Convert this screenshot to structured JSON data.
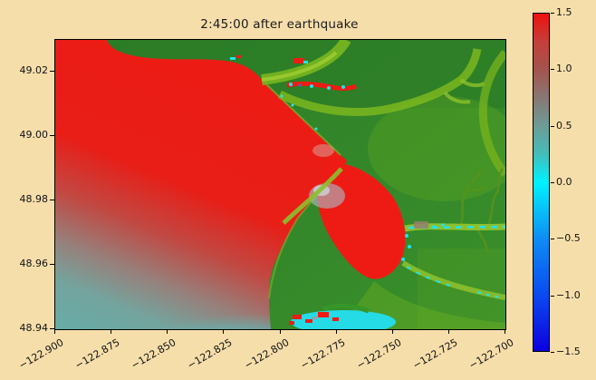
{
  "figure": {
    "background_color": "#f6deab",
    "axes_border_color": "#000000"
  },
  "chart_data": {
    "type": "heatmap",
    "title": "2:45:00 after earthquake",
    "xlabel": "",
    "ylabel": "",
    "grid": false,
    "x_axis": {
      "range": [
        -122.9,
        -122.7
      ],
      "tick_values": [
        -122.9,
        -122.875,
        -122.85,
        -122.825,
        -122.8,
        -122.775,
        -122.75,
        -122.725,
        -122.7
      ],
      "tick_labels": [
        "−122.900",
        "−122.875",
        "−122.850",
        "−122.825",
        "−122.800",
        "−122.775",
        "−122.750",
        "−122.725",
        "−122.700"
      ],
      "tick_rotation_deg": 30
    },
    "y_axis": {
      "range": [
        48.94,
        49.03
      ],
      "tick_values": [
        49.02,
        49.0,
        48.98,
        48.96,
        48.94
      ],
      "tick_labels": [
        "49.02",
        "49.00",
        "48.98",
        "48.96",
        "48.94"
      ]
    },
    "colorbar": {
      "position": "right",
      "range": [
        -1.5,
        1.5
      ],
      "tick_values": [
        1.5,
        1.0,
        0.5,
        0.0,
        -0.5,
        -1.0,
        -1.5
      ],
      "tick_labels": [
        "1.5",
        "1.0",
        "0.5",
        "0.0",
        "−0.5",
        "−1.0",
        "−1.5"
      ],
      "gradient_stops": [
        {
          "value": 1.5,
          "color": "#ee100e"
        },
        {
          "value": 1.25,
          "color": "#c53f39"
        },
        {
          "value": 1.0,
          "color": "#a3544f"
        },
        {
          "value": 0.5,
          "color": "#6d9c97"
        },
        {
          "value": 0.25,
          "color": "#44bdba"
        },
        {
          "value": 0.0,
          "color": "#00f2ff"
        },
        {
          "value": -0.5,
          "color": "#0e8df4"
        },
        {
          "value": -1.0,
          "color": "#0b4aef"
        },
        {
          "value": -1.5,
          "color": "#0c00e0"
        }
      ]
    },
    "regions": [
      {
        "name": "main-bay-surface",
        "description": "large open bay, upper-left two-thirds of map",
        "approx_value": 1.5,
        "color": "#e81e17"
      },
      {
        "name": "offshore-southwest-surface",
        "description": "water toward lower-left corner",
        "approx_value_range": [
          0.0,
          0.7
        ],
        "color": "#66aca7"
      },
      {
        "name": "enclosed-harbor-surface",
        "description": "round harbor behind spit, center-right",
        "approx_value": 1.5,
        "color": "#ee1b14"
      },
      {
        "name": "lagoon-bottom-center",
        "description": "small lagoon on bottom edge with speckled extremes",
        "approx_value_range": [
          -0.2,
          1.5
        ],
        "color": "#25dbe6"
      },
      {
        "name": "land",
        "description": "green terrain, top strip and right half, with lighter river valleys and cyan-dashed streams",
        "color": "#338a2a"
      }
    ]
  }
}
